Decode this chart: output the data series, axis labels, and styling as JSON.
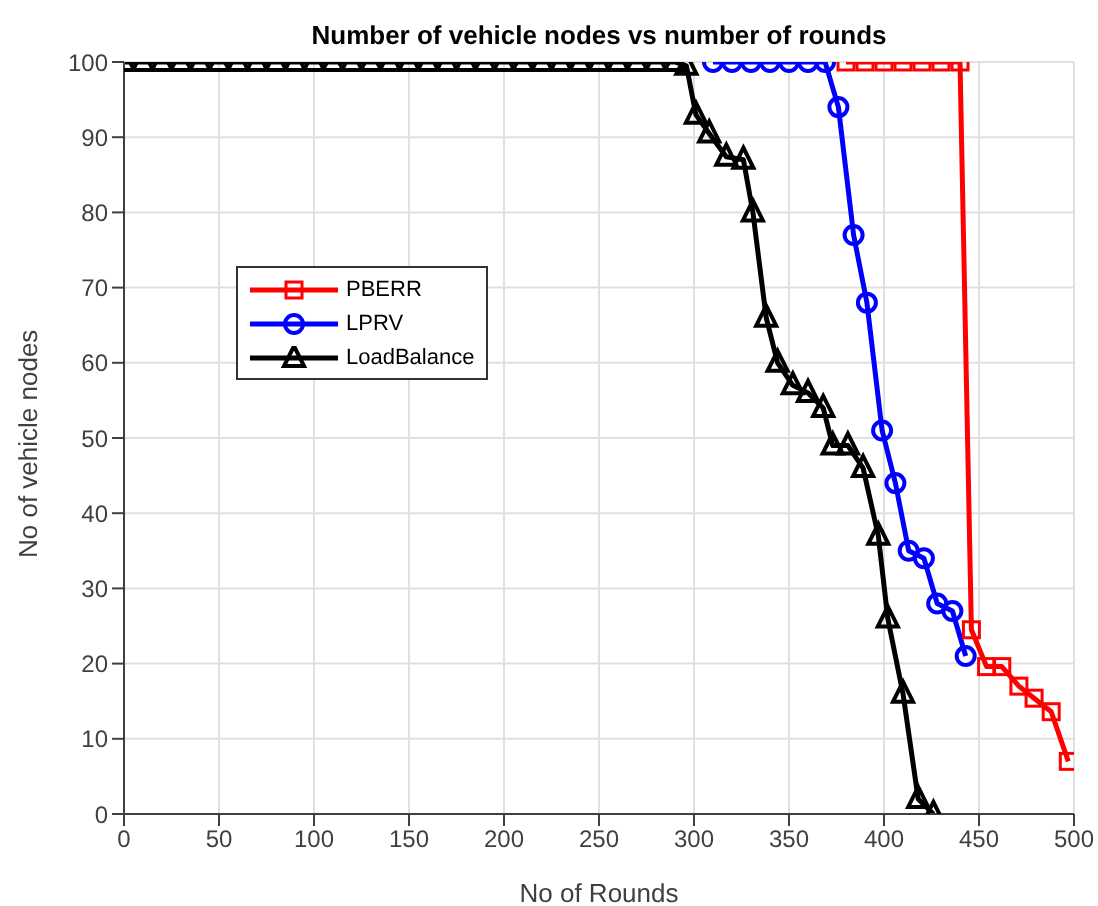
{
  "chart_data": {
    "type": "line",
    "title": "Number of vehicle nodes vs number of rounds",
    "xlabel": "No of Rounds",
    "ylabel": "No of vehicle nodes",
    "xlim": [
      0,
      500
    ],
    "xticks": [
      0,
      50,
      100,
      150,
      200,
      250,
      300,
      350,
      400,
      450,
      500
    ],
    "ylim": [
      0,
      100
    ],
    "yticks": [
      0,
      10,
      20,
      30,
      40,
      50,
      60,
      70,
      80,
      90,
      100
    ],
    "grid": true,
    "legend": "left",
    "line_style": "solid",
    "series": [
      {
        "name": "PBERR",
        "color": "#ff0000",
        "marker": "square",
        "x": [
          380,
          390,
          400,
          410,
          420,
          430,
          440,
          446,
          454,
          462,
          471,
          479,
          488,
          497
        ],
        "values": [
          100,
          100,
          100,
          100,
          100,
          100,
          100,
          24.5,
          19.6,
          19.6,
          17,
          15.4,
          13.6,
          7
        ]
      },
      {
        "name": "LPRV",
        "color": "#0000ff",
        "marker": "circle",
        "x": [
          310,
          320,
          330,
          340,
          350,
          360,
          369,
          376,
          384,
          391,
          399,
          406,
          413,
          421,
          428,
          436,
          443
        ],
        "values": [
          100,
          100,
          100,
          100,
          100,
          100,
          100,
          94,
          77,
          68,
          51,
          44,
          35,
          34,
          28,
          27,
          21
        ]
      },
      {
        "name": "LoadBalance",
        "color": "#000000",
        "marker": "triangle",
        "x": [
          0,
          10,
          20,
          30,
          40,
          50,
          60,
          70,
          80,
          90,
          100,
          110,
          120,
          130,
          140,
          150,
          160,
          170,
          180,
          190,
          200,
          210,
          220,
          230,
          240,
          250,
          260,
          270,
          280,
          290,
          296,
          301,
          308,
          317,
          326,
          331,
          338,
          344,
          352,
          360,
          368,
          373,
          381,
          389,
          397,
          402,
          410,
          418,
          426
        ],
        "values": [
          100,
          100,
          100,
          100,
          100,
          100,
          100,
          100,
          100,
          100,
          100,
          100,
          100,
          100,
          100,
          100,
          100,
          100,
          100,
          100,
          100,
          100,
          100,
          100,
          100,
          100,
          100,
          100,
          100,
          100,
          99.5,
          93,
          90.5,
          87.4,
          87,
          80,
          66,
          60,
          57,
          56,
          54,
          49,
          49,
          46,
          37,
          26,
          16,
          2,
          0
        ]
      }
    ]
  }
}
